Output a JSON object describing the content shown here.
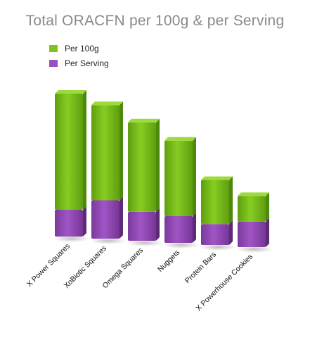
{
  "chart_data": {
    "type": "bar",
    "stacked": true,
    "title": "Total ORACFN per 100g & per Serving",
    "categories": [
      "X Power Squares",
      "XoBiotic Squares",
      "Omega Squares",
      "Nuggets",
      "Protein Bars",
      "X Powerhouse Cookies"
    ],
    "series": [
      {
        "name": "Per 100g",
        "values": [
          100,
          82,
          77,
          65,
          38,
          22
        ],
        "color": "#7fc41c"
      },
      {
        "name": "Per Serving",
        "values": [
          23,
          33,
          25,
          23,
          18,
          22
        ],
        "color": "#9a4fbf"
      }
    ],
    "ylim": [
      0,
      130
    ],
    "grid": false,
    "legend_position": "top-left"
  }
}
